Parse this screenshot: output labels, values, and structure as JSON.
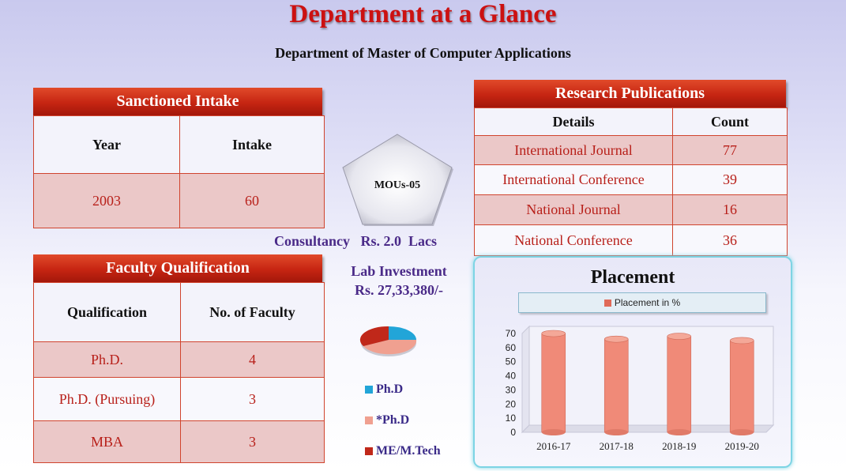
{
  "title": "Department at a Glance",
  "subtitle": "Department of Master of Computer Applications",
  "intake": {
    "header": "Sanctioned Intake",
    "columns": [
      "Year",
      "Intake"
    ],
    "rows": [
      [
        "2003",
        "60"
      ]
    ]
  },
  "faculty": {
    "header": "Faculty Qualification",
    "columns": [
      "Qualification",
      "No. of Faculty"
    ],
    "rows": [
      [
        "Ph.D.",
        "4"
      ],
      [
        "Ph.D. (Pursuing)",
        "3"
      ],
      [
        "MBA",
        "3"
      ]
    ]
  },
  "research": {
    "header": "Research Publications",
    "columns": [
      "Details",
      "Count"
    ],
    "rows": [
      [
        "International Journal",
        "77"
      ],
      [
        "International Conference",
        "39"
      ],
      [
        "National Journal",
        "16"
      ],
      [
        "National Conference",
        "36"
      ]
    ]
  },
  "mous": "MOUs-05",
  "consultancy": "Consultancy   Rs. 2.0  Lacs",
  "lab": {
    "label": "Lab Investment",
    "value": "Rs. 27,33,380/-"
  },
  "pie_legend": [
    {
      "label": "Ph.D",
      "color": "#22a5d8"
    },
    {
      "label": "*Ph.D",
      "color": "#f0a090"
    },
    {
      "label": "ME/M.Tech",
      "color": "#c0281a"
    }
  ],
  "chart_data": {
    "type": "bar",
    "title": "Placement",
    "legend": "Placement in %",
    "categories": [
      "2016-17",
      "2017-18",
      "2018-19",
      "2019-20"
    ],
    "values": [
      70,
      66,
      68,
      65
    ],
    "ylim": [
      0,
      70
    ],
    "yticks": [
      "0",
      "10",
      "20",
      "30",
      "40",
      "50",
      "60",
      "70"
    ],
    "color": "#f08a78",
    "grid": false
  }
}
